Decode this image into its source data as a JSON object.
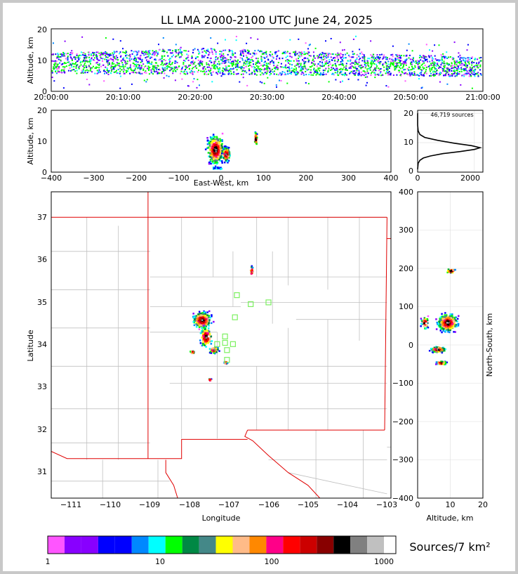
{
  "title": "LL LMA 2000-2100 UTC June 24, 2025",
  "colors": {
    "frame": "#c8c8c8",
    "state_border": "#e00000",
    "county": "#c0c0c0",
    "station": "#7cf060",
    "grid": "#dddddd"
  },
  "panels": {
    "time_height": {
      "ylabel": "Altitude, km",
      "y_ticks": [
        "0",
        "10",
        "20"
      ],
      "x_ticks": [
        "20:00:00",
        "20:10:00",
        "20:20:00",
        "20:30:00",
        "20:40:00",
        "20:50:00",
        "21:00:00"
      ]
    },
    "ew_height": {
      "ylabel": "Altitude, km",
      "xlabel": "East-West, km",
      "y_ticks": [
        "0",
        "10",
        "20"
      ],
      "x_ticks": [
        "−400",
        "−300",
        "−200",
        "−100",
        "0",
        "100",
        "200",
        "300",
        "400"
      ]
    },
    "histogram": {
      "annotation": "46,719 sources",
      "y_ticks": [
        "0",
        "10",
        "20"
      ],
      "x_ticks": [
        "0",
        "2000"
      ]
    },
    "plan": {
      "xlabel": "Longitude",
      "ylabel": "Latitude",
      "x_ticks": [
        "−111",
        "−110",
        "−109",
        "−108",
        "−107",
        "−106",
        "−105",
        "−104",
        "−103"
      ],
      "y_ticks": [
        "31",
        "32",
        "33",
        "34",
        "35",
        "36",
        "37"
      ]
    },
    "ns_height": {
      "xlabel": "Altitude, km",
      "ylabel": "North-South, km",
      "x_ticks": [
        "0",
        "10",
        "20"
      ],
      "y_ticks": [
        "−400",
        "−300",
        "−200",
        "−100",
        "0",
        "100",
        "200",
        "300",
        "400"
      ]
    }
  },
  "colorbar": {
    "label": "Sources/7 km²",
    "ticks": [
      "1",
      "10",
      "100",
      "1000"
    ],
    "colors": [
      "#ff55ff",
      "#8800ff",
      "#8800ff",
      "#0000ff",
      "#0000ff",
      "#0088ff",
      "#00ffff",
      "#00ff00",
      "#008844",
      "#448888",
      "#ffff00",
      "#ffbb88",
      "#ff8800",
      "#ff0088",
      "#ff0000",
      "#cc0000",
      "#880000",
      "#000000",
      "#808080",
      "#c0c0c0",
      "#ffffff"
    ]
  },
  "chart_data": [
    {
      "type": "heatmap",
      "name": "time-height",
      "x_range": [
        "20:00:00",
        "21:00:00"
      ],
      "ylim": [
        0,
        20
      ],
      "band_km": {
        "top": [
          11,
          14
        ],
        "bottom": [
          6,
          5
        ]
      },
      "dominant_altitude_km": 8
    },
    {
      "type": "heatmap",
      "name": "east-west vs altitude",
      "xlim": [
        -400,
        400
      ],
      "ylim": [
        0,
        20
      ],
      "clusters_km": [
        {
          "x": -15,
          "y": 7.5,
          "rx": 25,
          "ry": 6
        },
        {
          "x": 10,
          "y": 6,
          "rx": 12,
          "ry": 3
        },
        {
          "x": 80,
          "y": 11,
          "rx": 4,
          "ry": 3
        }
      ]
    },
    {
      "type": "line",
      "name": "altitude histogram",
      "xlim": [
        0,
        2300
      ],
      "ylim": [
        0,
        21
      ],
      "x": [
        0,
        20,
        80,
        200,
        450,
        900,
        1500,
        2000,
        2200,
        1900,
        1300,
        700,
        250,
        80,
        20,
        0,
        0
      ],
      "y": [
        1,
        3,
        4,
        4.8,
        5.5,
        6.3,
        7.0,
        7.7,
        8.3,
        9.0,
        9.8,
        10.8,
        11.8,
        12.8,
        14,
        16,
        20
      ]
    },
    {
      "type": "heatmap",
      "name": "plan view",
      "xlim": [
        -111.5,
        -102.9
      ],
      "ylim": [
        30.4,
        37.6
      ],
      "clusters_deg": [
        {
          "lon": -107.7,
          "lat": 34.6,
          "rx": 0.3,
          "ry": 0.25
        },
        {
          "lon": -107.6,
          "lat": 34.2,
          "rx": 0.2,
          "ry": 0.3
        },
        {
          "lon": -107.4,
          "lat": 33.9,
          "rx": 0.15,
          "ry": 0.1
        },
        {
          "lon": -107.95,
          "lat": 33.85,
          "rx": 0.07,
          "ry": 0.05
        },
        {
          "lon": -107.1,
          "lat": 33.6,
          "rx": 0.05,
          "ry": 0.05
        },
        {
          "lon": -106.45,
          "lat": 35.75,
          "rx": 0.05,
          "ry": 0.15
        },
        {
          "lon": -107.5,
          "lat": 33.2,
          "rx": 0.04,
          "ry": 0.05
        }
      ],
      "stations": [
        {
          "lon": -106.8,
          "lat": 35.17
        },
        {
          "lon": -106.45,
          "lat": 34.96
        },
        {
          "lon": -106.0,
          "lat": 35.0
        },
        {
          "lon": -106.85,
          "lat": 34.65
        },
        {
          "lon": -107.1,
          "lat": 34.2
        },
        {
          "lon": -107.1,
          "lat": 34.05
        },
        {
          "lon": -106.9,
          "lat": 34.02
        },
        {
          "lon": -107.3,
          "lat": 34.02
        },
        {
          "lon": -107.05,
          "lat": 33.88
        },
        {
          "lon": -107.05,
          "lat": 33.65
        }
      ]
    },
    {
      "type": "heatmap",
      "name": "altitude vs north-south",
      "xlim": [
        0,
        20
      ],
      "ylim": [
        -400,
        400
      ],
      "clusters_km": [
        {
          "alt": 9,
          "ns": 60,
          "rx": 4,
          "ry": 30
        },
        {
          "alt": 6,
          "ns": -10,
          "rx": 3,
          "ry": 10
        },
        {
          "alt": 7,
          "ns": -45,
          "rx": 2,
          "ry": 6
        },
        {
          "alt": 10,
          "ns": 195,
          "rx": 2,
          "ry": 8
        },
        {
          "alt": 2,
          "ns": 60,
          "rx": 1.5,
          "ry": 20
        }
      ]
    }
  ]
}
